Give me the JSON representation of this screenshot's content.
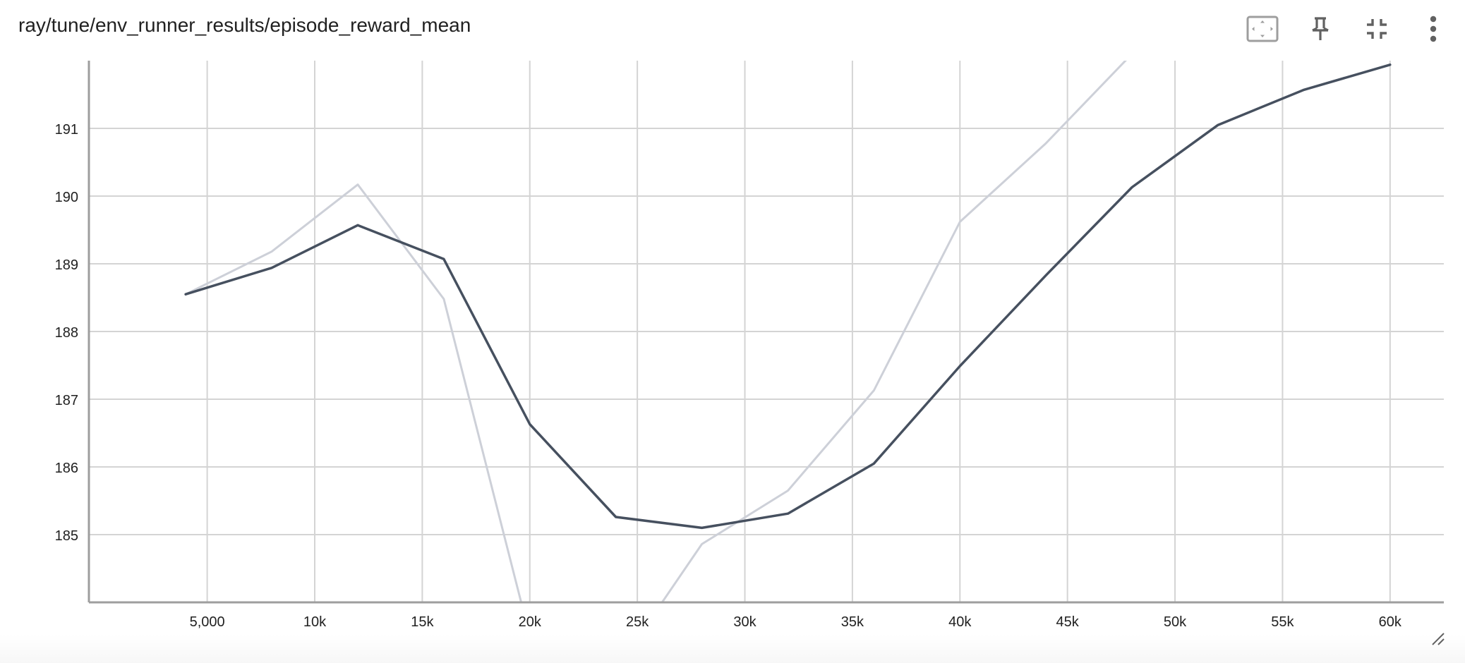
{
  "card": {
    "title": "ray/tune/env_runner_results/episode_reward_mean"
  },
  "header_icons": [
    "fit-domain-icon",
    "pin-icon",
    "collapse-icon",
    "more-vert-icon"
  ],
  "colors": {
    "main_line": "#46505f",
    "raw_line": "#cdd0d8",
    "grid": "#d4d4d4",
    "axis": "#9e9e9e",
    "fit_icon": "#9e9e9e",
    "icon": "#616161"
  },
  "chart_data": {
    "type": "line",
    "title": "",
    "xlabel": "",
    "ylabel": "",
    "xlim": [
      -500,
      62500
    ],
    "ylim": [
      184,
      192
    ],
    "x_ticks": [
      {
        "value": 5000,
        "label": "5,000"
      },
      {
        "value": 10000,
        "label": "10k"
      },
      {
        "value": 15000,
        "label": "15k"
      },
      {
        "value": 20000,
        "label": "20k"
      },
      {
        "value": 25000,
        "label": "25k"
      },
      {
        "value": 30000,
        "label": "30k"
      },
      {
        "value": 35000,
        "label": "35k"
      },
      {
        "value": 40000,
        "label": "40k"
      },
      {
        "value": 45000,
        "label": "45k"
      },
      {
        "value": 50000,
        "label": "50k"
      },
      {
        "value": 55000,
        "label": "55k"
      },
      {
        "value": 60000,
        "label": "60k"
      }
    ],
    "y_ticks": [
      {
        "value": 185,
        "label": "185"
      },
      {
        "value": 186,
        "label": "186"
      },
      {
        "value": 187,
        "label": "187"
      },
      {
        "value": 188,
        "label": "188"
      },
      {
        "value": 189,
        "label": "189"
      },
      {
        "value": 190,
        "label": "190"
      },
      {
        "value": 191,
        "label": "191"
      }
    ],
    "grid": true,
    "series": [
      {
        "role": "raw",
        "x": [
          4000,
          8000,
          12000,
          16000,
          20000,
          24000,
          28000,
          32000,
          36000,
          40000,
          44000,
          48000
        ],
        "y": [
          188.55,
          189.18,
          190.17,
          188.48,
          183.5,
          183.0,
          184.86,
          185.65,
          187.13,
          189.62,
          190.78,
          192.1
        ]
      },
      {
        "role": "smoothed",
        "x": [
          4000,
          8000,
          12000,
          16000,
          20000,
          24000,
          28000,
          32000,
          36000,
          40000,
          44000,
          48000,
          52000,
          56000,
          60000
        ],
        "y": [
          188.55,
          188.94,
          189.57,
          189.07,
          186.63,
          185.26,
          185.1,
          185.31,
          186.05,
          187.49,
          188.83,
          190.13,
          191.05,
          191.57,
          191.94
        ]
      }
    ]
  }
}
